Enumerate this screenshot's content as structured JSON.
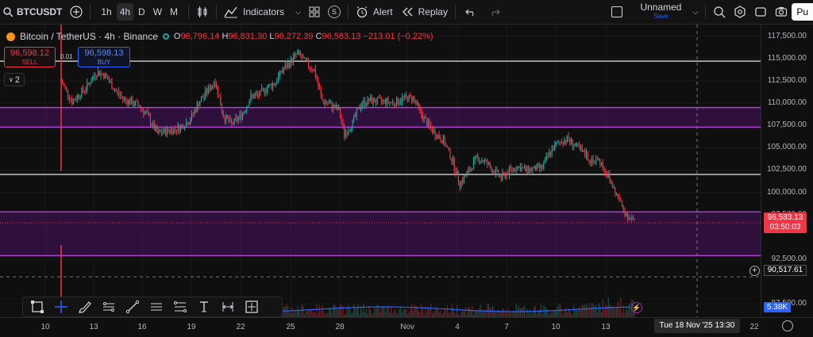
{
  "topbar": {
    "symbol": "BTCUSDT",
    "timeframes": [
      {
        "label": "1h",
        "active": false
      },
      {
        "label": "4h",
        "active": true
      },
      {
        "label": "D",
        "active": false
      },
      {
        "label": "W",
        "active": false
      },
      {
        "label": "M",
        "active": false
      }
    ],
    "indicators_label": "Indicators",
    "currency_badge": "S",
    "alert_label": "Alert",
    "replay_label": "Replay",
    "layout_name": "Unnamed",
    "layout_status": "Save",
    "publish_label": "Pu"
  },
  "legend": {
    "title": "Bitcoin / TetherUS · 4h · Binance",
    "open_label": "O",
    "open": "96,796.14",
    "high_label": "H",
    "high": "96,831.30",
    "low_label": "L",
    "low": "96,272.39",
    "close_label": "C",
    "close": "96,583.13",
    "change": "−213.01 (−0.22%)"
  },
  "trade": {
    "sell_price": "96,598.12",
    "sell_label": "SELL",
    "spread": "0.01",
    "buy_price": "96,598.13",
    "buy_label": "BUY",
    "collapse_count": "2"
  },
  "price_axis": {
    "labels": [
      "117,500.00",
      "115,000.00",
      "112,500.00",
      "110,000.00",
      "107,500.00",
      "105,000.00",
      "102,500.00",
      "100,000.00",
      "97,500.00",
      "92,500.00",
      "87,500.00"
    ],
    "last_price": "96,583.13",
    "countdown": "03:50:03",
    "crosshair_price": "90,517.61",
    "volume": "5.38K"
  },
  "time_axis": {
    "labels": [
      "10",
      "13",
      "16",
      "19",
      "22",
      "25",
      "28",
      "Nov",
      "4",
      "7",
      "10",
      "13",
      "22"
    ],
    "crosshair_time": "Tue 18 Nov '25   13:30"
  },
  "colors": {
    "up": "#26a69a",
    "down": "#f23645",
    "zone": "#9c27b0",
    "background": "#0f0f0f"
  },
  "chart_data": {
    "type": "candlestick",
    "ylim": [
      86000,
      118800
    ],
    "timeframe": "4h",
    "zones": [
      {
        "from": 107300,
        "to": 109500
      },
      {
        "from": 92900,
        "to": 97800
      }
    ],
    "hlines": [
      114700,
      102000
    ],
    "path": [
      [
        0,
        112500
      ],
      [
        8,
        110200
      ],
      [
        18,
        111700
      ],
      [
        26,
        113500
      ],
      [
        32,
        113100
      ],
      [
        40,
        111300
      ],
      [
        46,
        110400
      ],
      [
        56,
        109800
      ],
      [
        62,
        108800
      ],
      [
        70,
        106600
      ],
      [
        78,
        106900
      ],
      [
        86,
        107200
      ],
      [
        94,
        108200
      ],
      [
        100,
        110000
      ],
      [
        106,
        111300
      ],
      [
        112,
        112500
      ],
      [
        118,
        108600
      ],
      [
        124,
        107600
      ],
      [
        132,
        108800
      ],
      [
        138,
        110700
      ],
      [
        144,
        110900
      ],
      [
        150,
        111800
      ],
      [
        156,
        112300
      ],
      [
        160,
        113500
      ],
      [
        166,
        114500
      ],
      [
        172,
        115600
      ],
      [
        178,
        114500
      ],
      [
        184,
        113700
      ],
      [
        190,
        110200
      ],
      [
        196,
        109800
      ],
      [
        202,
        109200
      ],
      [
        206,
        106500
      ],
      [
        212,
        107800
      ],
      [
        218,
        109900
      ],
      [
        224,
        110300
      ],
      [
        230,
        110200
      ],
      [
        236,
        110200
      ],
      [
        242,
        110000
      ],
      [
        248,
        110500
      ],
      [
        256,
        110600
      ],
      [
        262,
        108700
      ],
      [
        270,
        106900
      ],
      [
        278,
        105800
      ],
      [
        284,
        103800
      ],
      [
        290,
        101000
      ],
      [
        296,
        102200
      ],
      [
        302,
        103800
      ],
      [
        308,
        103500
      ],
      [
        314,
        102500
      ],
      [
        320,
        101600
      ],
      [
        326,
        102400
      ],
      [
        332,
        102900
      ],
      [
        338,
        102500
      ],
      [
        344,
        102600
      ],
      [
        350,
        102800
      ],
      [
        356,
        104600
      ],
      [
        362,
        105600
      ],
      [
        368,
        106000
      ],
      [
        374,
        105200
      ],
      [
        380,
        104300
      ],
      [
        386,
        103600
      ],
      [
        392,
        103500
      ],
      [
        398,
        101700
      ],
      [
        404,
        99700
      ],
      [
        410,
        97800
      ],
      [
        416,
        96800
      ]
    ]
  }
}
